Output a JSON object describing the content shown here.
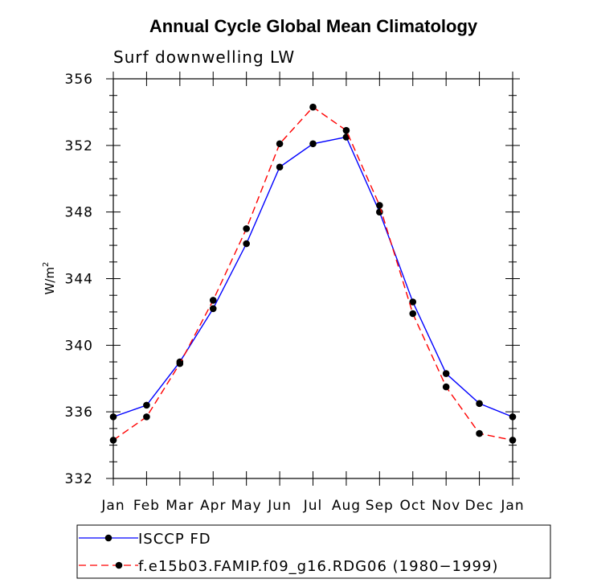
{
  "chart_data": {
    "type": "line",
    "title": "Annual Cycle Global Mean Climatology",
    "subtitle": "Surf downwelling LW",
    "ylabel": "W/m",
    "ylabel_sup": "2",
    "xlabel": "",
    "categories": [
      "Jan",
      "Feb",
      "Mar",
      "Apr",
      "May",
      "Jun",
      "Jul",
      "Aug",
      "Sep",
      "Oct",
      "Nov",
      "Dec",
      "Jan"
    ],
    "ylim": [
      332,
      356
    ],
    "yticks": [
      332,
      336,
      340,
      344,
      348,
      352,
      356
    ],
    "series": [
      {
        "name": "ISCCP FD",
        "color": "#0000ff",
        "dash": "solid",
        "values": [
          335.7,
          336.4,
          339.0,
          342.2,
          346.1,
          350.7,
          352.1,
          352.5,
          348.0,
          342.6,
          338.3,
          336.5,
          335.7
        ]
      },
      {
        "name": "f.e15b03.FAMIP.f09_g16.RDG06 (1980−1999)",
        "color": "#ff0000",
        "dash": "dashed",
        "values": [
          334.3,
          335.7,
          338.9,
          342.7,
          347.0,
          352.1,
          354.3,
          352.9,
          348.4,
          341.9,
          337.5,
          334.7,
          334.3
        ]
      }
    ],
    "grid": false,
    "legend_position": "bottom"
  }
}
